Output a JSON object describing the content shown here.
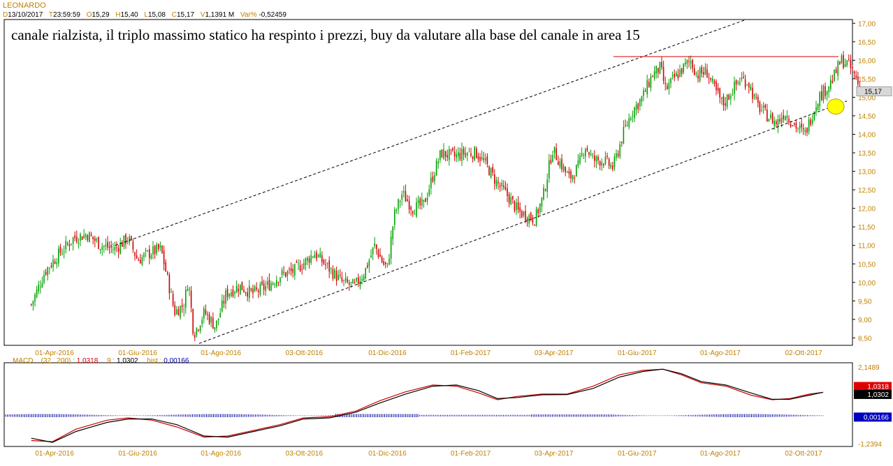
{
  "header": {
    "symbol": "LEONARDO",
    "date_key": "D",
    "date": "13/10/2017",
    "time_key": "T",
    "time": "23:59:59",
    "open_key": "O",
    "open": "15,29",
    "high_key": "H",
    "high": "15,40",
    "low_key": "L",
    "low": "15,08",
    "close_key": "C",
    "close": "15,17",
    "volume_key": "V",
    "volume": "1,1391 M",
    "var_key": "Var%",
    "var": "-0,52459"
  },
  "annotation": "canale rialzista, il triplo massimo statico ha respinto i prezzi, buy da valutare alla base del canale in area 15",
  "macd_header": {
    "label": "MACD",
    "params": "(32 , 200) :",
    "macd": "1,0318",
    "signal_label": "9 :",
    "signal": "1,0302",
    "hist_label": "hist :",
    "hist": "0,00166"
  },
  "colors": {
    "up": "#00a000",
    "down": "#d00000",
    "axis_text": "#c08000",
    "macd_line": "#d00000",
    "signal_line": "#000000",
    "hist": "#0000a0",
    "resistance": "#d00000",
    "highlight": "#ffff00"
  },
  "chart_data": [
    {
      "type": "candlestick",
      "title": "LEONARDO",
      "x_tick_labels": [
        "01-Apr-2016",
        "01-Giu-2016",
        "01-Ago-2016",
        "03-Ott-2016",
        "01-Dic-2016",
        "01-Feb-2017",
        "03-Apr-2017",
        "01-Giu-2017",
        "01-Ago-2017",
        "02-Ott-2017"
      ],
      "y_tick_labels": [
        "8,50",
        "9,00",
        "9,50",
        "10,00",
        "10,50",
        "11,00",
        "11,50",
        "12,00",
        "12,50",
        "13,00",
        "13,50",
        "14,00",
        "14,50",
        "15,00",
        "15,50",
        "16,00",
        "16,50",
        "17,00"
      ],
      "ylim": [
        8.3,
        17.1
      ],
      "last_price_label": "15,17",
      "close_path": [
        [
          "2016-03-15",
          9.4
        ],
        [
          "2016-03-25",
          10.3
        ],
        [
          "2016-04-05",
          10.8
        ],
        [
          "2016-04-15",
          11.2
        ],
        [
          "2016-04-25",
          11.3
        ],
        [
          "2016-05-05",
          11.0
        ],
        [
          "2016-05-15",
          10.9
        ],
        [
          "2016-05-25",
          11.2
        ],
        [
          "2016-06-01",
          10.6
        ],
        [
          "2016-06-10",
          10.8
        ],
        [
          "2016-06-18",
          10.9
        ],
        [
          "2016-06-24",
          9.9
        ],
        [
          "2016-06-28",
          9.2
        ],
        [
          "2016-07-05",
          9.4
        ],
        [
          "2016-07-08",
          10.1
        ],
        [
          "2016-07-12",
          8.6
        ],
        [
          "2016-07-20",
          9.2
        ],
        [
          "2016-07-28",
          8.8
        ],
        [
          "2016-08-05",
          9.7
        ],
        [
          "2016-08-15",
          9.9
        ],
        [
          "2016-08-25",
          9.7
        ],
        [
          "2016-09-05",
          9.9
        ],
        [
          "2016-09-15",
          10.2
        ],
        [
          "2016-09-25",
          10.3
        ],
        [
          "2016-10-05",
          10.6
        ],
        [
          "2016-10-10",
          10.8
        ],
        [
          "2016-10-20",
          10.4
        ],
        [
          "2016-10-30",
          10.0
        ],
        [
          "2016-11-08",
          9.9
        ],
        [
          "2016-11-15",
          10.3
        ],
        [
          "2016-11-22",
          11.0
        ],
        [
          "2016-11-28",
          10.5
        ],
        [
          "2016-12-01",
          10.4
        ],
        [
          "2016-12-06",
          11.8
        ],
        [
          "2016-12-12",
          12.4
        ],
        [
          "2016-12-20",
          12.0
        ],
        [
          "2016-12-28",
          12.1
        ],
        [
          "2017-01-05",
          13.0
        ],
        [
          "2017-01-10",
          13.5
        ],
        [
          "2017-01-20",
          13.4
        ],
        [
          "2017-01-28",
          13.5
        ],
        [
          "2017-02-05",
          13.5
        ],
        [
          "2017-02-12",
          13.2
        ],
        [
          "2017-02-20",
          12.7
        ],
        [
          "2017-03-01",
          12.3
        ],
        [
          "2017-03-08",
          11.9
        ],
        [
          "2017-03-15",
          11.8
        ],
        [
          "2017-03-20",
          11.7
        ],
        [
          "2017-03-26",
          12.3
        ],
        [
          "2017-04-02",
          13.6
        ],
        [
          "2017-04-08",
          13.2
        ],
        [
          "2017-04-14",
          12.8
        ],
        [
          "2017-04-20",
          13.1
        ],
        [
          "2017-04-25",
          13.7
        ],
        [
          "2017-05-01",
          13.3
        ],
        [
          "2017-05-08",
          13.3
        ],
        [
          "2017-05-15",
          13.1
        ],
        [
          "2017-05-22",
          14.0
        ],
        [
          "2017-05-28",
          14.6
        ],
        [
          "2017-06-05",
          15.0
        ],
        [
          "2017-06-12",
          15.6
        ],
        [
          "2017-06-18",
          15.8
        ],
        [
          "2017-06-22",
          15.2
        ],
        [
          "2017-06-28",
          15.5
        ],
        [
          "2017-07-05",
          15.8
        ],
        [
          "2017-07-10",
          16.0
        ],
        [
          "2017-07-15",
          15.6
        ],
        [
          "2017-07-22",
          15.7
        ],
        [
          "2017-07-28",
          15.2
        ],
        [
          "2017-08-03",
          14.8
        ],
        [
          "2017-08-10",
          15.2
        ],
        [
          "2017-08-16",
          15.5
        ],
        [
          "2017-08-22",
          15.4
        ],
        [
          "2017-08-28",
          14.8
        ],
        [
          "2017-09-05",
          14.5
        ],
        [
          "2017-09-12",
          14.3
        ],
        [
          "2017-09-18",
          14.6
        ],
        [
          "2017-09-24",
          14.3
        ],
        [
          "2017-09-30",
          14.1
        ],
        [
          "2017-10-03",
          14.0
        ],
        [
          "2017-10-08",
          14.5
        ],
        [
          "2017-10-13",
          15.0
        ],
        [
          "2017-10-18",
          15.2
        ],
        [
          "2017-10-24",
          15.5
        ],
        [
          "2017-10-30",
          16.0
        ],
        [
          "2017-11-04",
          15.9
        ],
        [
          "2017-11-09",
          15.6
        ],
        [
          "2017-11-14",
          15.17
        ]
      ]
    },
    {
      "type": "line",
      "title": "MACD",
      "y_tick_labels": [
        "2,1489",
        "-1,2394"
      ],
      "ylim": [
        -1.2394,
        2.1489
      ],
      "series": [
        {
          "name": "MACD",
          "points": [
            [
              "2016-03-15",
              -1.1
            ],
            [
              "2016-04-01",
              -1.15
            ],
            [
              "2016-04-20",
              -0.6
            ],
            [
              "2016-05-15",
              -0.2
            ],
            [
              "2016-06-01",
              -0.1
            ],
            [
              "2016-06-20",
              -0.2
            ],
            [
              "2016-07-10",
              -0.5
            ],
            [
              "2016-08-01",
              -0.95
            ],
            [
              "2016-08-20",
              -0.9
            ],
            [
              "2016-09-10",
              -0.65
            ],
            [
              "2016-10-01",
              -0.4
            ],
            [
              "2016-10-20",
              -0.1
            ],
            [
              "2016-11-10",
              -0.05
            ],
            [
              "2016-12-01",
              0.2
            ],
            [
              "2016-12-20",
              0.65
            ],
            [
              "2017-01-10",
              1.05
            ],
            [
              "2017-02-01",
              1.35
            ],
            [
              "2017-02-20",
              1.3
            ],
            [
              "2017-03-10",
              1.0
            ],
            [
              "2017-03-25",
              0.7
            ],
            [
              "2017-04-10",
              0.85
            ],
            [
              "2017-04-30",
              0.95
            ],
            [
              "2017-05-20",
              0.95
            ],
            [
              "2017-06-10",
              1.3
            ],
            [
              "2017-07-01",
              1.8
            ],
            [
              "2017-07-20",
              2.0
            ],
            [
              "2017-08-05",
              2.05
            ],
            [
              "2017-08-20",
              1.8
            ],
            [
              "2017-09-05",
              1.45
            ],
            [
              "2017-09-25",
              1.3
            ],
            [
              "2017-10-15",
              0.9
            ],
            [
              "2017-11-01",
              0.7
            ],
            [
              "2017-11-15",
              0.75
            ],
            [
              "2017-12-01",
              0.95
            ],
            [
              "2017-12-12",
              1.0318
            ]
          ]
        },
        {
          "name": "Signal",
          "points": [
            [
              "2016-03-15",
              -1.0
            ],
            [
              "2016-04-01",
              -1.18
            ],
            [
              "2016-04-20",
              -0.7
            ],
            [
              "2016-05-15",
              -0.3
            ],
            [
              "2016-06-01",
              -0.15
            ],
            [
              "2016-06-20",
              -0.15
            ],
            [
              "2016-07-10",
              -0.4
            ],
            [
              "2016-08-01",
              -0.9
            ],
            [
              "2016-08-20",
              -0.95
            ],
            [
              "2016-09-10",
              -0.7
            ],
            [
              "2016-10-01",
              -0.45
            ],
            [
              "2016-10-20",
              -0.15
            ],
            [
              "2016-11-10",
              -0.1
            ],
            [
              "2016-12-01",
              0.15
            ],
            [
              "2016-12-20",
              0.55
            ],
            [
              "2017-01-10",
              0.95
            ],
            [
              "2017-02-01",
              1.3
            ],
            [
              "2017-02-20",
              1.35
            ],
            [
              "2017-03-10",
              1.1
            ],
            [
              "2017-03-25",
              0.75
            ],
            [
              "2017-04-10",
              0.8
            ],
            [
              "2017-04-30",
              0.92
            ],
            [
              "2017-05-20",
              0.93
            ],
            [
              "2017-06-10",
              1.2
            ],
            [
              "2017-07-01",
              1.7
            ],
            [
              "2017-07-20",
              1.95
            ],
            [
              "2017-08-05",
              2.05
            ],
            [
              "2017-08-20",
              1.85
            ],
            [
              "2017-09-05",
              1.5
            ],
            [
              "2017-09-25",
              1.35
            ],
            [
              "2017-10-15",
              1.0
            ],
            [
              "2017-11-01",
              0.72
            ],
            [
              "2017-11-15",
              0.72
            ],
            [
              "2017-12-01",
              0.9
            ],
            [
              "2017-12-12",
              1.0302
            ]
          ]
        }
      ],
      "last_labels": [
        "1,0318",
        "1,0302",
        "0,00166"
      ]
    }
  ]
}
